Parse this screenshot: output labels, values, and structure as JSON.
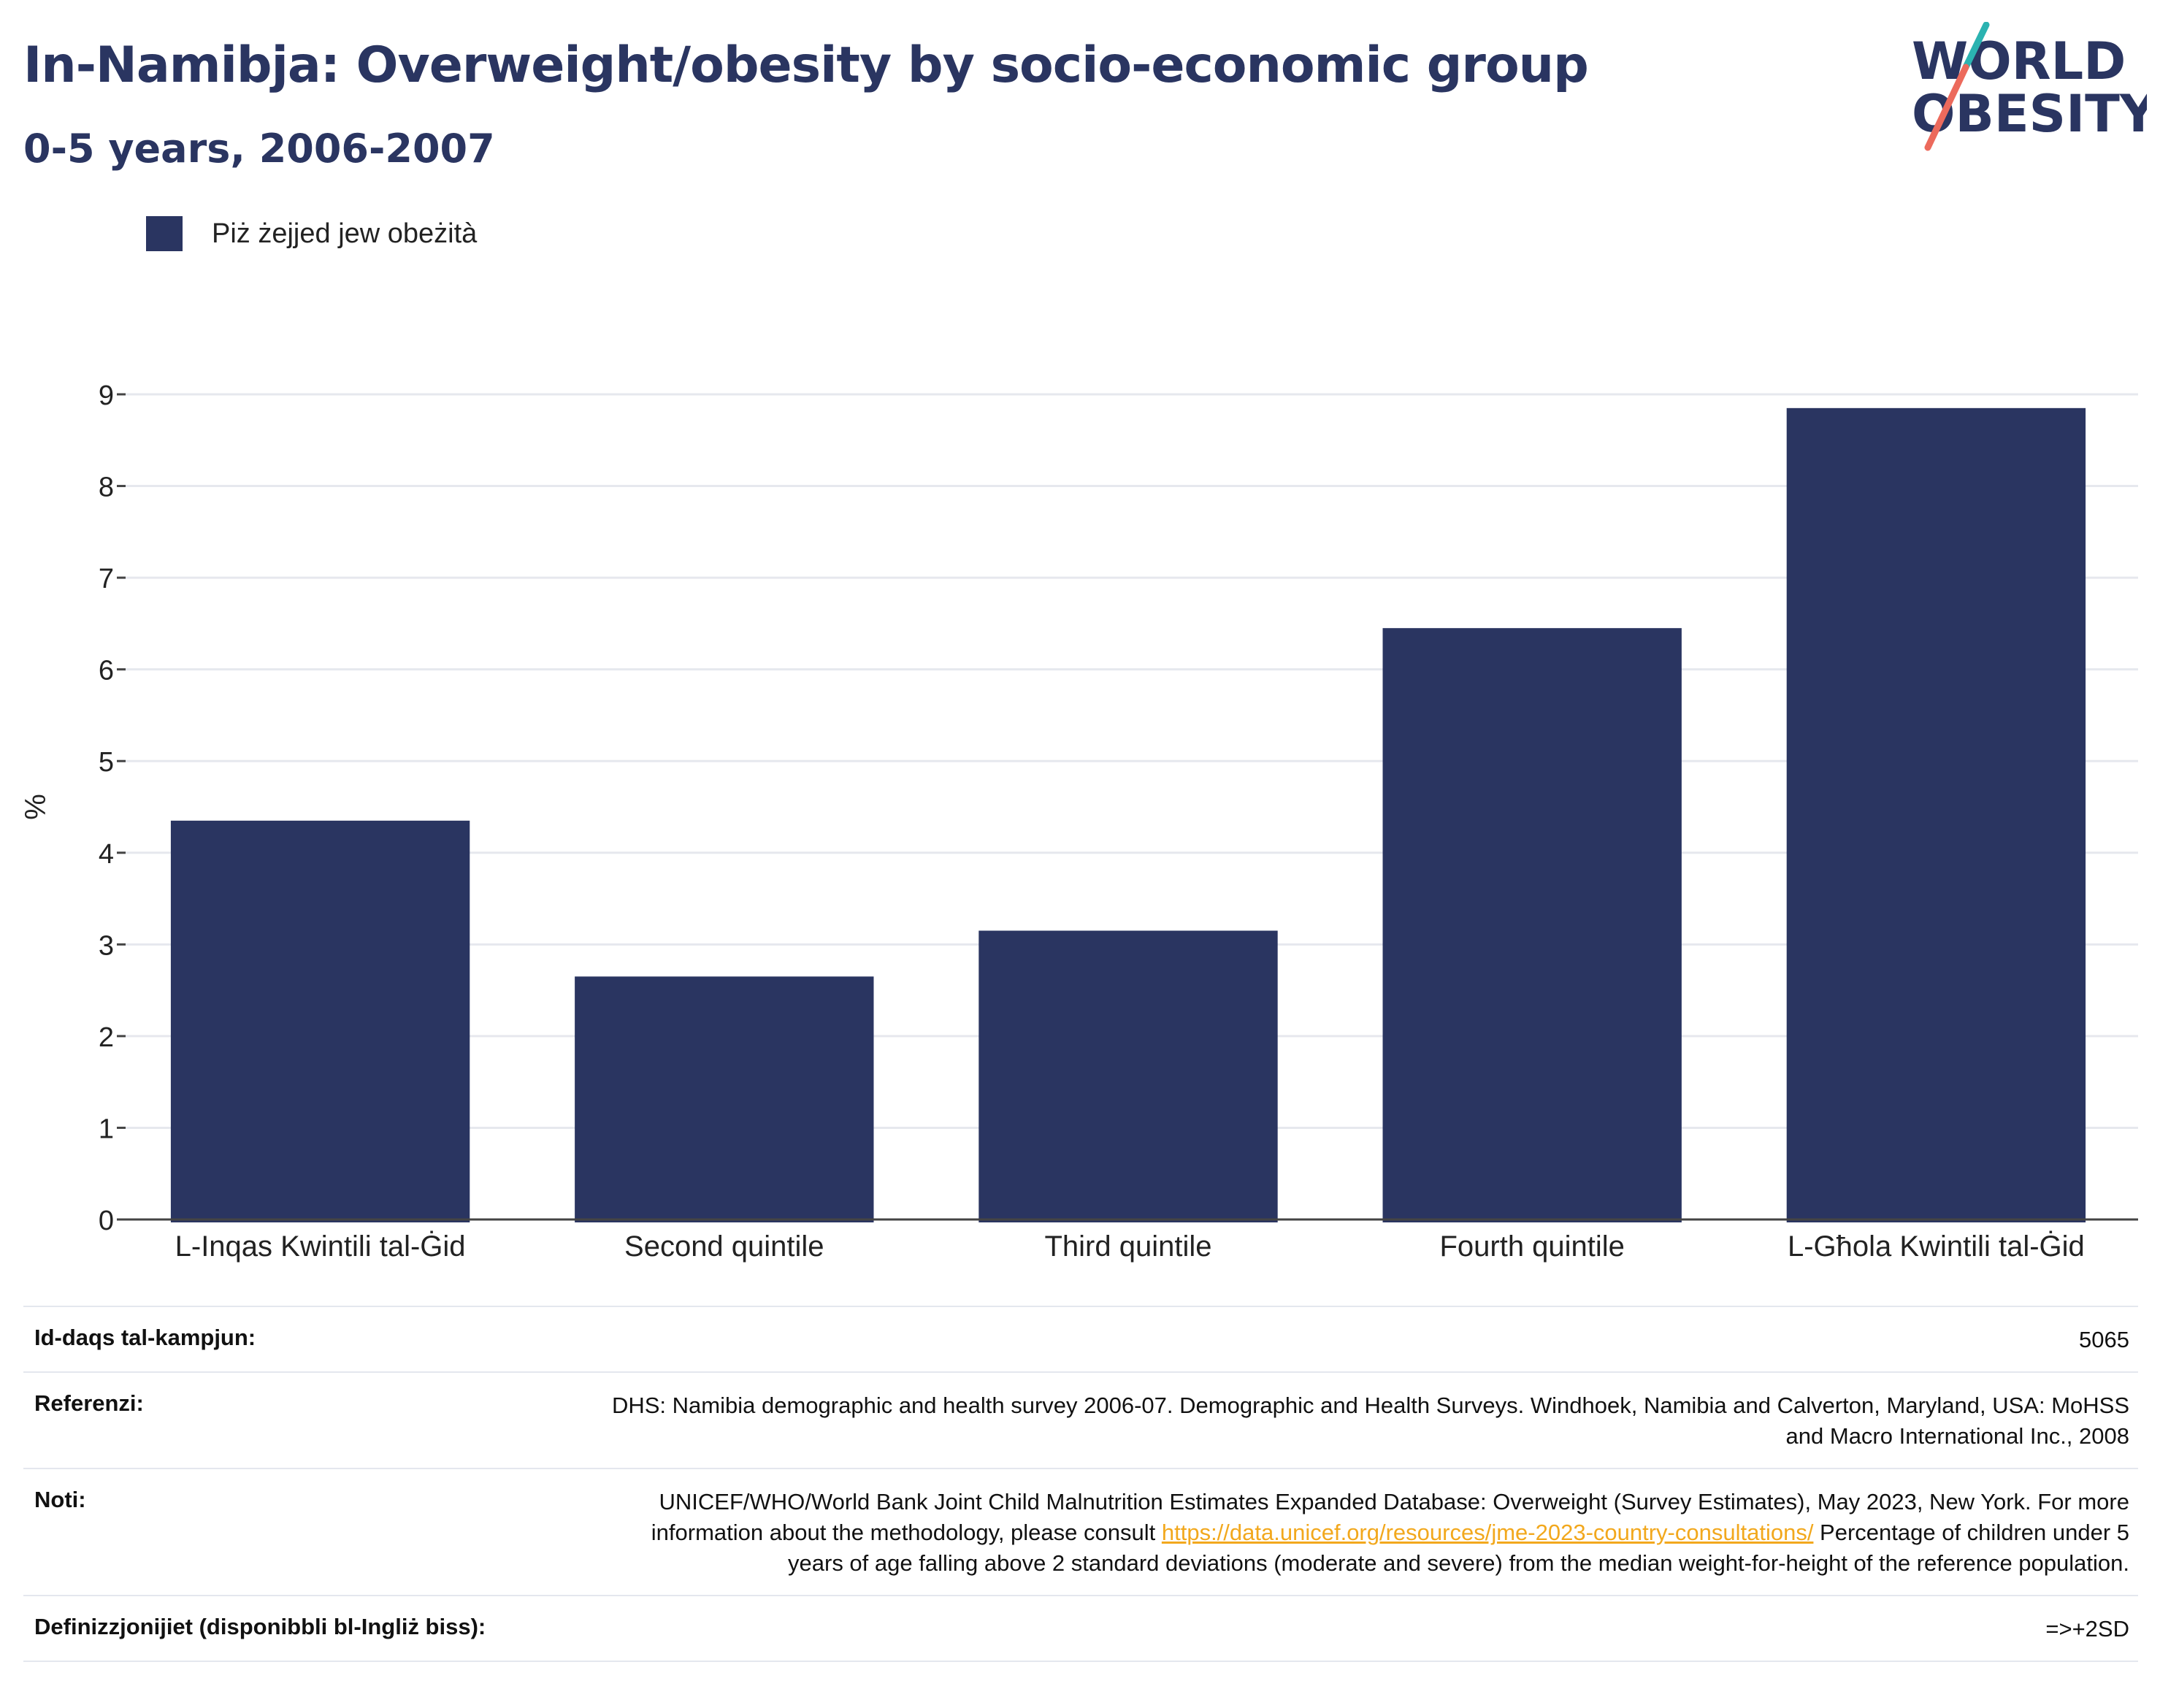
{
  "header": {
    "title": "In-Namibja: Overweight/obesity by socio-economic group",
    "subtitle": "0-5 years, 2006-2007"
  },
  "logo": {
    "line1": "WORLD",
    "line2": "OBESITY"
  },
  "colors": {
    "bar": "#2a3561",
    "title": "#2a3561",
    "grid": "#e6e8ee",
    "link": "#f2a81d"
  },
  "chart_data": {
    "type": "bar",
    "categories": [
      "L-Inqas Kwintili tal-Ġid",
      "Second quintile",
      "Third quintile",
      "Fourth quintile",
      "L-Għola Kwintili tal-Ġid"
    ],
    "series": [
      {
        "name": "Piż żejjed jew obeżità",
        "values": [
          4.35,
          2.65,
          3.15,
          6.45,
          8.85
        ]
      }
    ],
    "ylabel": "%",
    "ylim": [
      0,
      9
    ],
    "yticks": [
      0,
      1,
      2,
      3,
      4,
      5,
      6,
      7,
      8,
      9
    ],
    "grid": true,
    "legend_position": "top-left"
  },
  "meta": {
    "sample_label": "Id-daqs tal-kampjun:",
    "sample_value": "5065",
    "refs_label": "Referenzi:",
    "refs_value": "DHS: Namibia demographic and health survey 2006-07. Demographic and Health Surveys. Windhoek, Namibia and Calverton, Maryland, USA: MoHSS and Macro International Inc., 2008",
    "notes_label": "Noti:",
    "notes_text_before": "UNICEF/WHO/World Bank Joint Child Malnutrition Estimates Expanded Database: Overweight (Survey Estimates), May 2023, New York. For more information about the methodology, please consult ",
    "notes_link": "https://data.unicef.org/resources/jme-2023-country-consultations/",
    "notes_text_after": " Percentage of children under 5 years of age falling above 2 standard deviations (moderate and severe) from the median weight-for-height of the reference population.",
    "defs_label": "Definizzjonijiet (disponibbli bl-Ingliż biss):",
    "defs_value": "=>+2SD"
  }
}
